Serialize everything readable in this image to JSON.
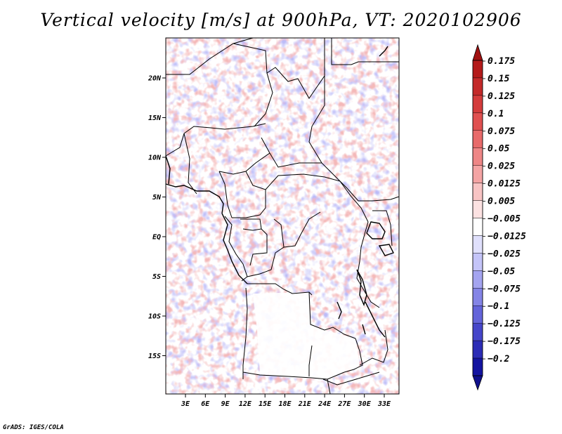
{
  "title": "Vertical velocity [m/s] at 900hPa, VT: 2020102906",
  "footer": "GrADS: IGES/COLA",
  "map": {
    "lon_labels": [
      "3E",
      "6E",
      "9E",
      "12E",
      "15E",
      "18E",
      "21E",
      "24E",
      "27E",
      "30E",
      "33E"
    ],
    "lat_labels": [
      "20N",
      "15N",
      "10N",
      "5N",
      "EQ",
      "5S",
      "10S",
      "15S"
    ]
  },
  "legend": {
    "labels": [
      "0.175",
      "0.15",
      "0.125",
      "0.1",
      "0.075",
      "0.05",
      "0.025",
      "0.0125",
      "0.005",
      "−0.005",
      "−0.0125",
      "−0.025",
      "−0.05",
      "−0.075",
      "−0.1",
      "−0.125",
      "−0.175",
      "−0.2"
    ],
    "colors": [
      "#b41a1a",
      "#c42a2a",
      "#d43c3c",
      "#e05050",
      "#e86a6a",
      "#ee8686",
      "#f4a4a4",
      "#f8c4c4",
      "#fce2e2",
      "#ffffff",
      "#e0e0fc",
      "#c4c4f8",
      "#a4a4f0",
      "#8484e6",
      "#6464da",
      "#4646ca",
      "#2c2cb6",
      "#1414a0"
    ],
    "top_arrow_color": "#a01010",
    "bottom_arrow_color": "#10108c"
  }
}
